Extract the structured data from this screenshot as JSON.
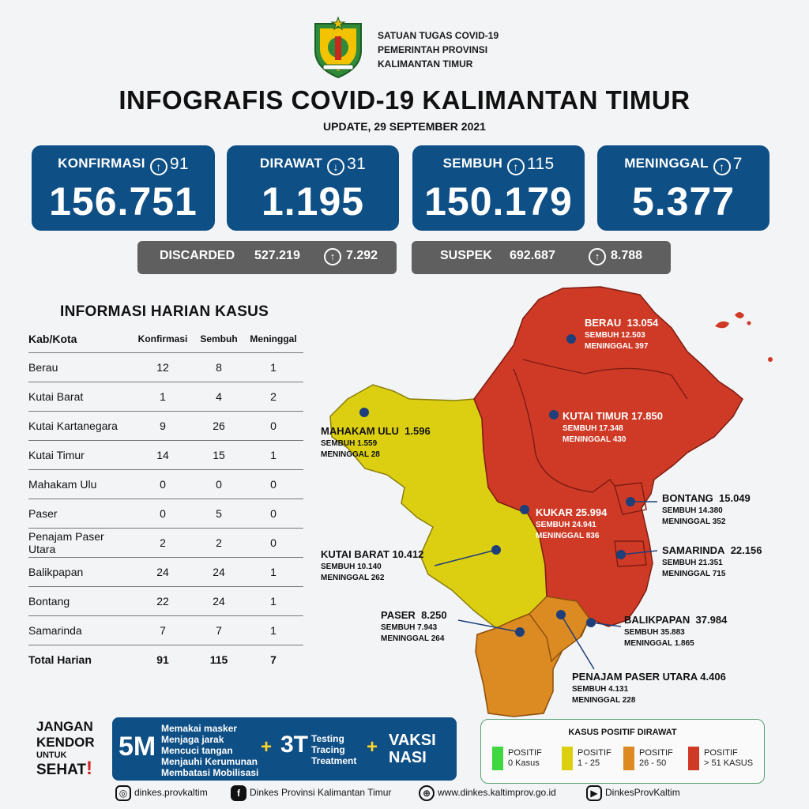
{
  "header": {
    "org_lines": [
      "SATUAN TUGAS COVID-19",
      "PEMERINTAH PROVINSI",
      "KALIMANTAN TIMUR"
    ],
    "title": "INFOGRAFIS COVID-19 KALIMANTAN TIMUR",
    "update": "UPDATE, 29 SEPTEMBER 2021"
  },
  "stats": {
    "konfirmasi": {
      "label": "KONFIRMASI",
      "arrow": "↑",
      "delta": "91",
      "value": "156.751"
    },
    "dirawat": {
      "label": "DIRAWAT",
      "arrow": "↓",
      "delta": "31",
      "value": "1.195"
    },
    "sembuh": {
      "label": "SEMBUH",
      "arrow": "↑",
      "delta": "115",
      "value": "150.179"
    },
    "meninggal": {
      "label": "MENINGGAL",
      "arrow": "↑",
      "delta": "7",
      "value": "5.377"
    }
  },
  "discarded": {
    "label": "DISCARDED",
    "value": "527.219",
    "arrow": "↑",
    "delta": "7.292"
  },
  "suspek": {
    "label": "SUSPEK",
    "value": "692.687",
    "arrow": "↑",
    "delta": "8.788"
  },
  "table": {
    "title": "INFORMASI HARIAN KASUS",
    "headers": [
      "Kab/Kota",
      "Konfirmasi",
      "Sembuh",
      "Meninggal"
    ],
    "rows": [
      [
        "Berau",
        "12",
        "8",
        "1"
      ],
      [
        "Kutai Barat",
        "1",
        "4",
        "2"
      ],
      [
        "Kutai Kartanegara",
        "9",
        "26",
        "0"
      ],
      [
        "Kutai Timur",
        "14",
        "15",
        "1"
      ],
      [
        "Mahakam Ulu",
        "0",
        "0",
        "0"
      ],
      [
        "Paser",
        "0",
        "5",
        "0"
      ],
      [
        "Penajam Paser Utara",
        "2",
        "2",
        "0"
      ],
      [
        "Balikpapan",
        "24",
        "24",
        "1"
      ],
      [
        "Bontang",
        "22",
        "24",
        "1"
      ],
      [
        "Samarinda",
        "7",
        "7",
        "1"
      ]
    ],
    "total": [
      "Total Harian",
      "91",
      "115",
      "7"
    ]
  },
  "map": {
    "berau": {
      "name": "BERAU",
      "total": "13.054",
      "sembuh": "SEMBUH 12.503",
      "meninggal": "MENINGGAL 397"
    },
    "kutai_timur": {
      "name": "KUTAI TIMUR",
      "total": "17.850",
      "sembuh": "SEMBUH 17.348",
      "meninggal": "MENINGGAL 430"
    },
    "mahakam_ulu": {
      "name": "MAHAKAM ULU",
      "total": "1.596",
      "sembuh": "SEMBUH 1.559",
      "meninggal": "MENINGGAL 28"
    },
    "kukar": {
      "name": "KUKAR",
      "total": "25.994",
      "sembuh": "SEMBUH 24.941",
      "meninggal": "MENINGGAL 836"
    },
    "bontang": {
      "name": "BONTANG",
      "total": "15.049",
      "sembuh": "SEMBUH 14.380",
      "meninggal": "MENINGGAL 352"
    },
    "kutai_barat": {
      "name": "KUTAI BARAT",
      "total": "10.412",
      "sembuh": "SEMBUH 10.140",
      "meninggal": "MENINGGAL 262"
    },
    "samarinda": {
      "name": "SAMARINDA",
      "total": "22.156",
      "sembuh": "SEMBUH 21.351",
      "meninggal": "MENINGGAL 715"
    },
    "paser": {
      "name": "PASER",
      "total": "8.250",
      "sembuh": "SEMBUH 7.943",
      "meninggal": "MENINGGAL 264"
    },
    "balikpapan": {
      "name": "BALIKPAPAN",
      "total": "37.984",
      "sembuh": "SEMBUH 35.883",
      "meninggal": "MENINGGAL 1.865"
    },
    "ppu": {
      "name": "PENAJAM PASER UTARA",
      "total": "4.406",
      "sembuh": "SEMBUH 4.131",
      "meninggal": "MENINGGAL 228"
    }
  },
  "colors": {
    "red": "#cf3a26",
    "yellow": "#dccf12",
    "orange": "#dc8a22",
    "green": "#3fd63f",
    "blue": "#0e4f86"
  },
  "campaign": {
    "kendor": [
      "JANGAN",
      "KENDOR",
      "UNTUK",
      "SEHAT"
    ],
    "m5": "5M",
    "m5_items": [
      "Memakai masker",
      "Menjaga jarak",
      "Mencuci tangan",
      "Menjauhi Kerumunan",
      "Membatasi Mobilisasi"
    ],
    "t3": "3T",
    "t3_items": [
      "Testing",
      "Tracing",
      "Treatment"
    ],
    "vaksi": [
      "VAKSI",
      "NASI"
    ],
    "plus": "+"
  },
  "legend": {
    "title": "KASUS POSITIF DIRAWAT",
    "items": [
      {
        "l1": "POSITIF",
        "l2": "0 Kasus"
      },
      {
        "l1": "POSITIF",
        "l2": "1 - 25"
      },
      {
        "l1": "POSITIF",
        "l2": "26 - 50"
      },
      {
        "l1": "POSITIF",
        "l2": "> 51 KASUS"
      }
    ]
  },
  "footer": {
    "instagram": "dinkes.provkaltim",
    "facebook": "Dinkes Provinsi Kalimantan Timur",
    "website": "www.dinkes.kaltimprov.go.id",
    "youtube": "DinkesProvKaltim"
  }
}
